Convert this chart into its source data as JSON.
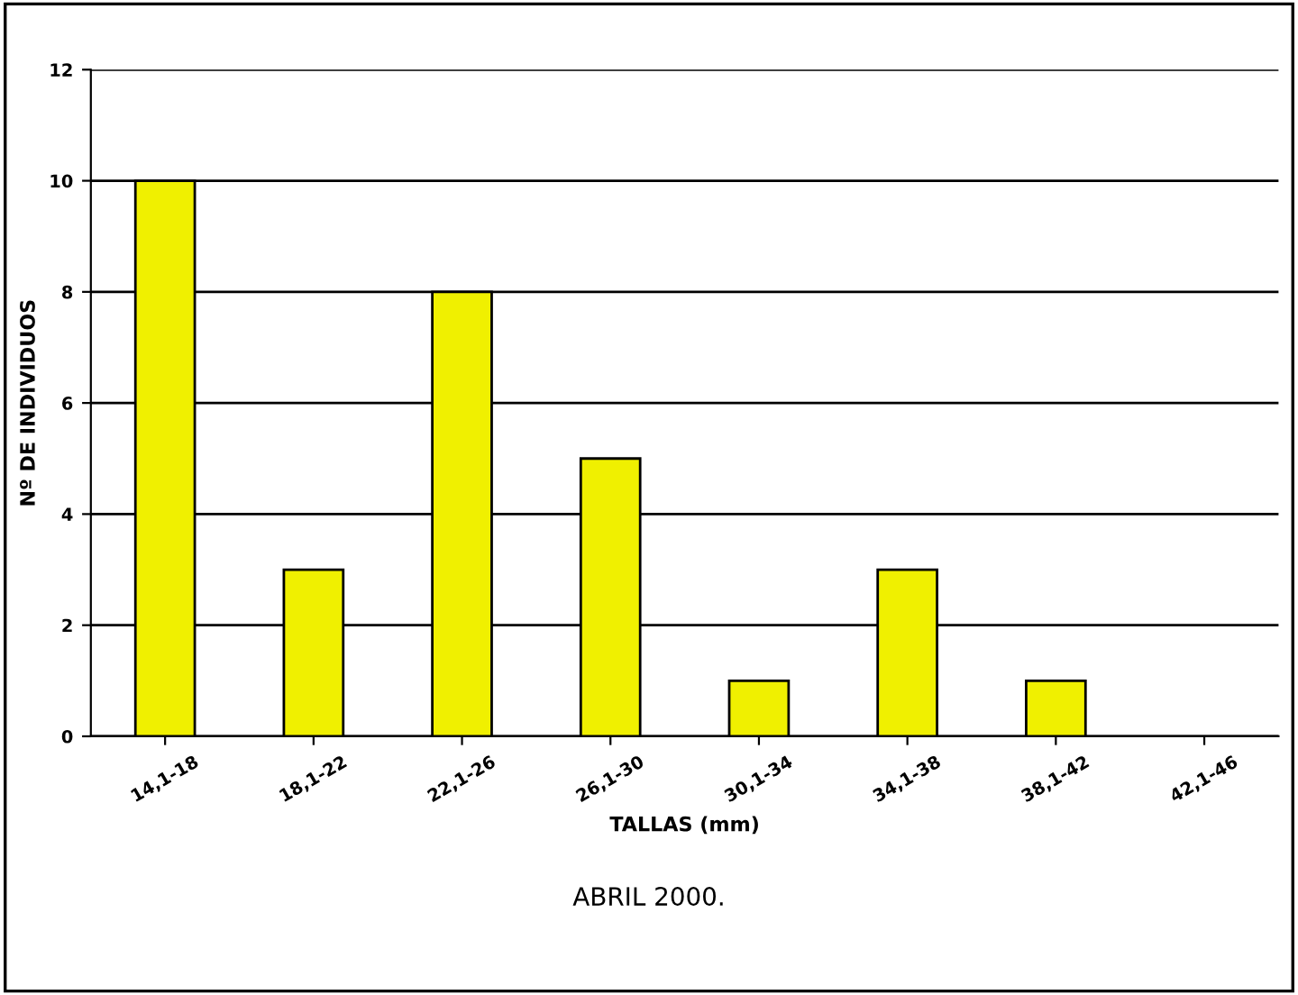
{
  "chart_data": {
    "type": "bar",
    "xlabel": "TALLAS (mm)",
    "ylabel": "Nº DE INDIVIDUOS",
    "categories": [
      "14,1-18",
      "18,1-22",
      "22,1-26",
      "26,1-30",
      "30,1-34",
      "34,1-38",
      "38,1-42",
      "42,1-46"
    ],
    "values": [
      10,
      3,
      8,
      5,
      1,
      3,
      1,
      null
    ],
    "color": "#f0f000",
    "ylim": [
      0,
      12
    ],
    "yticks": [
      0,
      2,
      4,
      6,
      8,
      10,
      12
    ],
    "grid": "y",
    "annotations": [
      "ABRIL 2000."
    ]
  }
}
